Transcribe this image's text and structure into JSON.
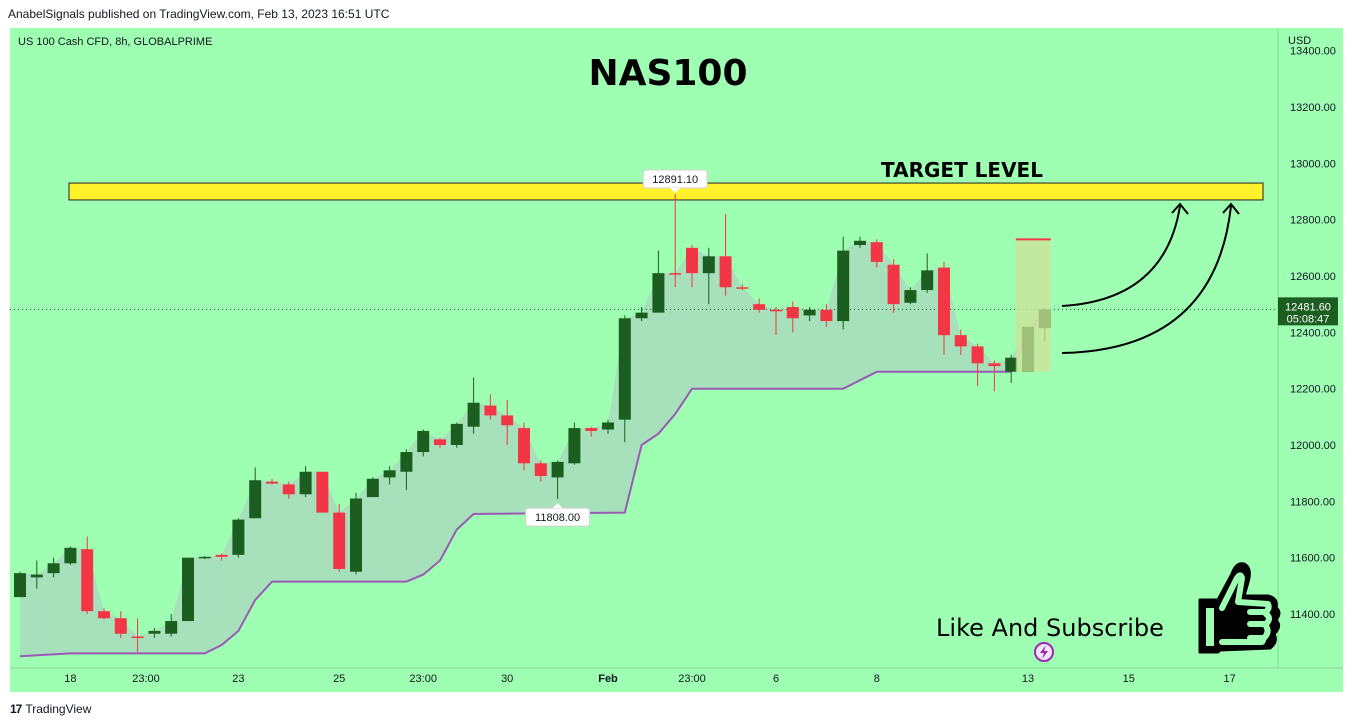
{
  "header": {
    "publisher": "AnabelSignals published on TradingView.com, Feb 13, 2023 16:51 UTC"
  },
  "footer": {
    "brand": "TradingView",
    "logo": "17"
  },
  "colors": {
    "background": "#9effb3",
    "bull": "#1b5e20",
    "bear": "#f23645",
    "channel_fill": "#a8dcbc",
    "channel_line": "#9b59b6",
    "target_band": "#fff12a"
  },
  "chart_data": {
    "type": "candlestick",
    "symbol": "US 100 Cash CFD, 8h, GLOBALPRIME",
    "title": "NAS100",
    "currency": "USD",
    "ylim": [
      11250,
      13480
    ],
    "y_ticks": [
      "13400.00",
      "13200.00",
      "13000.00",
      "12800.00",
      "12600.00",
      "12400.00",
      "12200.00",
      "12000.00",
      "11800.00",
      "11600.00",
      "11400.00"
    ],
    "x_ticks": [
      {
        "label": "18",
        "i": 3
      },
      {
        "label": "23:00",
        "i": 7.5
      },
      {
        "label": "23",
        "i": 13
      },
      {
        "label": "25",
        "i": 19
      },
      {
        "label": "23:00",
        "i": 24
      },
      {
        "label": "30",
        "i": 29
      },
      {
        "label": "Feb",
        "i": 35
      },
      {
        "label": "23:00",
        "i": 40
      },
      {
        "label": "6",
        "i": 45
      },
      {
        "label": "8",
        "i": 51
      },
      {
        "label": "13",
        "i": 60
      },
      {
        "label": "15",
        "i": 66
      },
      {
        "label": "17",
        "i": 72
      }
    ],
    "candles": [
      {
        "o": 11460,
        "h": 11550,
        "l": 11460,
        "c": 11545
      },
      {
        "o": 11530,
        "h": 11590,
        "l": 11490,
        "c": 11540
      },
      {
        "o": 11545,
        "h": 11600,
        "l": 11530,
        "c": 11580
      },
      {
        "o": 11580,
        "h": 11640,
        "l": 11575,
        "c": 11635
      },
      {
        "o": 11630,
        "h": 11675,
        "l": 11400,
        "c": 11410
      },
      {
        "o": 11410,
        "h": 11420,
        "l": 11380,
        "c": 11385
      },
      {
        "o": 11385,
        "h": 11410,
        "l": 11315,
        "c": 11330
      },
      {
        "o": 11320,
        "h": 11385,
        "l": 11265,
        "c": 11318
      },
      {
        "o": 11330,
        "h": 11350,
        "l": 11315,
        "c": 11340
      },
      {
        "o": 11330,
        "h": 11400,
        "l": 11320,
        "c": 11375
      },
      {
        "o": 11375,
        "h": 11600,
        "l": 11375,
        "c": 11600
      },
      {
        "o": 11600,
        "h": 11605,
        "l": 11595,
        "c": 11603
      },
      {
        "o": 11610,
        "h": 11615,
        "l": 11590,
        "c": 11603
      },
      {
        "o": 11610,
        "h": 11740,
        "l": 11600,
        "c": 11735
      },
      {
        "o": 11740,
        "h": 11920,
        "l": 11740,
        "c": 11875
      },
      {
        "o": 11870,
        "h": 11880,
        "l": 11860,
        "c": 11863
      },
      {
        "o": 11860,
        "h": 11870,
        "l": 11810,
        "c": 11825
      },
      {
        "o": 11825,
        "h": 11925,
        "l": 11815,
        "c": 11905
      },
      {
        "o": 11905,
        "h": 11905,
        "l": 11760,
        "c": 11760
      },
      {
        "o": 11760,
        "h": 11790,
        "l": 11550,
        "c": 11560
      },
      {
        "o": 11550,
        "h": 11830,
        "l": 11540,
        "c": 11810
      },
      {
        "o": 11815,
        "h": 11885,
        "l": 11815,
        "c": 11880
      },
      {
        "o": 11885,
        "h": 11925,
        "l": 11860,
        "c": 11910
      },
      {
        "o": 11905,
        "h": 11985,
        "l": 11840,
        "c": 11975
      },
      {
        "o": 11975,
        "h": 12055,
        "l": 11960,
        "c": 12050
      },
      {
        "o": 12020,
        "h": 12025,
        "l": 11990,
        "c": 12000
      },
      {
        "o": 12000,
        "h": 12080,
        "l": 11990,
        "c": 12075
      },
      {
        "o": 12065,
        "h": 12240,
        "l": 12040,
        "c": 12150
      },
      {
        "o": 12140,
        "h": 12180,
        "l": 12090,
        "c": 12105
      },
      {
        "o": 12105,
        "h": 12160,
        "l": 12000,
        "c": 12070
      },
      {
        "o": 12060,
        "h": 12080,
        "l": 11910,
        "c": 11935
      },
      {
        "o": 11935,
        "h": 11945,
        "l": 11870,
        "c": 11890
      },
      {
        "o": 11885,
        "h": 11945,
        "l": 11808,
        "c": 11940
      },
      {
        "o": 11935,
        "h": 12080,
        "l": 11930,
        "c": 12060
      },
      {
        "o": 12060,
        "h": 12065,
        "l": 12030,
        "c": 12050
      },
      {
        "o": 12055,
        "h": 12090,
        "l": 12040,
        "c": 12080
      },
      {
        "o": 12090,
        "h": 12460,
        "l": 12010,
        "c": 12450
      },
      {
        "o": 12450,
        "h": 12490,
        "l": 12440,
        "c": 12470
      },
      {
        "o": 12470,
        "h": 12690,
        "l": 12470,
        "c": 12610
      },
      {
        "o": 12610,
        "h": 12891,
        "l": 12560,
        "c": 12605
      },
      {
        "o": 12700,
        "h": 12710,
        "l": 12560,
        "c": 12610
      },
      {
        "o": 12610,
        "h": 12700,
        "l": 12500,
        "c": 12670
      },
      {
        "o": 12670,
        "h": 12820,
        "l": 12530,
        "c": 12560
      },
      {
        "o": 12560,
        "h": 12570,
        "l": 12550,
        "c": 12555
      },
      {
        "o": 12500,
        "h": 12520,
        "l": 12470,
        "c": 12480
      },
      {
        "o": 12480,
        "h": 12490,
        "l": 12390,
        "c": 12475
      },
      {
        "o": 12490,
        "h": 12510,
        "l": 12400,
        "c": 12450
      },
      {
        "o": 12460,
        "h": 12490,
        "l": 12440,
        "c": 12480
      },
      {
        "o": 12480,
        "h": 12500,
        "l": 12420,
        "c": 12440
      },
      {
        "o": 12440,
        "h": 12740,
        "l": 12410,
        "c": 12690
      },
      {
        "o": 12710,
        "h": 12740,
        "l": 12700,
        "c": 12725
      },
      {
        "o": 12720,
        "h": 12730,
        "l": 12630,
        "c": 12650
      },
      {
        "o": 12640,
        "h": 12660,
        "l": 12470,
        "c": 12500
      },
      {
        "o": 12505,
        "h": 12560,
        "l": 12500,
        "c": 12550
      },
      {
        "o": 12550,
        "h": 12680,
        "l": 12540,
        "c": 12620
      },
      {
        "o": 12630,
        "h": 12650,
        "l": 12320,
        "c": 12390
      },
      {
        "o": 12390,
        "h": 12410,
        "l": 12320,
        "c": 12350
      },
      {
        "o": 12350,
        "h": 12360,
        "l": 12210,
        "c": 12290
      },
      {
        "o": 12290,
        "h": 12300,
        "l": 12190,
        "c": 12280
      },
      {
        "o": 12260,
        "h": 12320,
        "l": 12220,
        "c": 12310
      },
      {
        "o": 12260,
        "h": 12420,
        "l": 12260,
        "c": 12420
      },
      {
        "o": 12415,
        "h": 12485,
        "l": 12370,
        "c": 12481
      }
    ],
    "channel_lower": [
      [
        0,
        11250
      ],
      [
        3,
        11260
      ],
      [
        7,
        11260
      ],
      [
        11,
        11260
      ],
      [
        12,
        11290
      ],
      [
        13,
        11340
      ],
      [
        14,
        11450
      ],
      [
        15,
        11515
      ],
      [
        16,
        11515
      ],
      [
        19,
        11515
      ],
      [
        23,
        11515
      ],
      [
        24,
        11540
      ],
      [
        25,
        11590
      ],
      [
        26,
        11700
      ],
      [
        27,
        11755
      ],
      [
        36,
        11760
      ],
      [
        37,
        12000
      ],
      [
        38,
        12040
      ],
      [
        39,
        12110
      ],
      [
        40,
        12200
      ],
      [
        49,
        12200
      ],
      [
        50,
        12230
      ],
      [
        51,
        12260
      ],
      [
        56,
        12260
      ],
      [
        57,
        12260
      ],
      [
        58,
        12260
      ],
      [
        59,
        12260
      ]
    ],
    "last_price": "12481.60",
    "last_price_value": 12481.6,
    "countdown": "05:08:47",
    "high_marker": {
      "label": "12891.10",
      "value": 12891.1,
      "i": 39
    },
    "low_marker": {
      "label": "11808.00",
      "value": 11808,
      "i": 32
    },
    "target_band": {
      "label": "TARGET LEVEL",
      "low": 12870,
      "high": 12930
    },
    "projection_box": {
      "low": 12260,
      "high": 12730
    },
    "cta": {
      "text": "Like And Subscribe"
    }
  }
}
